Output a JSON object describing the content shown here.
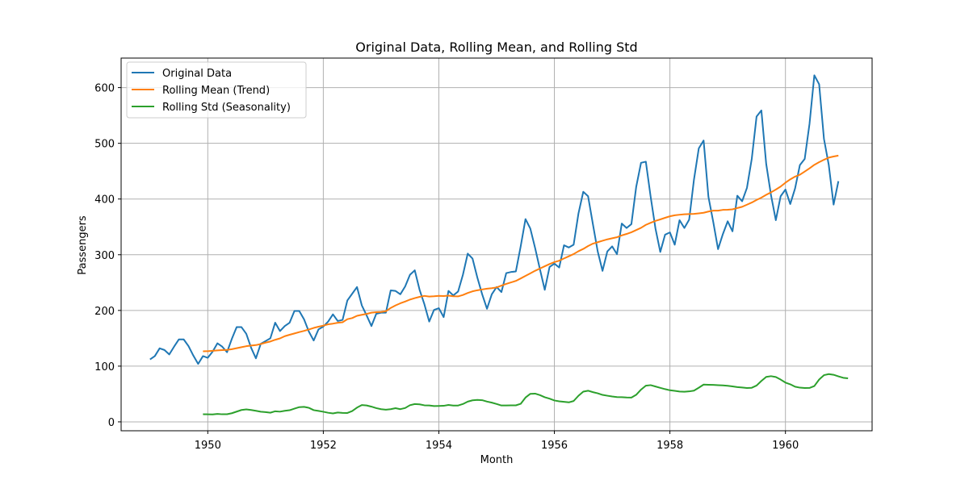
{
  "chart_data": {
    "type": "line",
    "title": "Original Data, Rolling Mean, and Rolling Std",
    "xlabel": "Month",
    "ylabel": "Passengers",
    "xlim": [
      1948.5,
      1961.5
    ],
    "ylim": [
      -16,
      653
    ],
    "xticks": [
      1950,
      1952,
      1954,
      1956,
      1958,
      1960
    ],
    "yticks": [
      0,
      100,
      200,
      300,
      400,
      500,
      600
    ],
    "grid": true,
    "legend_position": "top-left",
    "x_start": 1949,
    "x_step_months": 1,
    "series": [
      {
        "name": "Original Data",
        "color": "#1f77b4",
        "values": [
          112,
          118,
          132,
          129,
          121,
          135,
          148,
          148,
          136,
          119,
          104,
          118,
          115,
          126,
          141,
          135,
          125,
          149,
          170,
          170,
          158,
          133,
          114,
          140,
          145,
          150,
          178,
          163,
          172,
          178,
          199,
          199,
          184,
          162,
          146,
          166,
          171,
          180,
          193,
          181,
          183,
          218,
          230,
          242,
          209,
          191,
          172,
          194,
          196,
          196,
          236,
          235,
          229,
          243,
          264,
          272,
          237,
          211,
          180,
          201,
          204,
          188,
          235,
          227,
          234,
          264,
          302,
          293,
          259,
          229,
          203,
          229,
          242,
          233,
          267,
          269,
          270,
          315,
          364,
          347,
          312,
          274,
          237,
          278,
          284,
          277,
          317,
          313,
          318,
          374,
          413,
          405,
          355,
          306,
          271,
          306,
          315,
          301,
          356,
          348,
          355,
          422,
          465,
          467,
          404,
          347,
          305,
          336,
          340,
          318,
          362,
          348,
          363,
          435,
          491,
          505,
          404,
          359,
          310,
          337,
          360,
          342,
          406,
          396,
          420,
          472,
          548,
          559,
          463,
          407,
          362,
          405,
          417,
          391,
          419,
          461,
          472,
          535,
          622,
          606,
          508,
          461,
          390,
          432
        ]
      },
      {
        "name": "Rolling Mean (Trend)",
        "color": "#ff7f0e",
        "values": [
          null,
          null,
          null,
          null,
          null,
          null,
          null,
          null,
          null,
          null,
          null,
          126.7,
          126.9,
          127.6,
          128.3,
          128.8,
          129.2,
          130.4,
          132.2,
          134.0,
          135.8,
          137.0,
          137.8,
          139.7,
          142.2,
          144.2,
          147.3,
          149.8,
          153.8,
          156.3,
          158.7,
          161.1,
          163.3,
          165.8,
          168.6,
          170.8,
          172.7,
          175.1,
          176.3,
          177.8,
          178.8,
          184.3,
          186.3,
          190.3,
          192.2,
          193.8,
          196.0,
          196.8,
          197.2,
          198.6,
          204.5,
          209.0,
          212.8,
          215.9,
          219.5,
          222.1,
          224.4,
          226.1,
          224.9,
          225.4,
          226.2,
          225.9,
          226.5,
          225.5,
          225.2,
          227.7,
          231.3,
          234.3,
          236.2,
          237.7,
          239.1,
          240.0,
          241.3,
          244.5,
          247.6,
          250.3,
          253.0,
          257.4,
          262.1,
          266.6,
          271.2,
          275.2,
          279.3,
          283.3,
          286.7,
          289.3,
          293.3,
          297.2,
          301.2,
          306.3,
          310.4,
          315.6,
          319.9,
          322.5,
          325.1,
          327.6,
          329.5,
          331.4,
          334.7,
          337.3,
          340.3,
          344.3,
          348.3,
          353.6,
          357.3,
          360.8,
          363.4,
          366.3,
          369.0,
          370.8,
          371.8,
          372.6,
          372.9,
          373.3,
          374.3,
          375.3,
          377.5,
          379.1,
          379.2,
          380.5,
          380.7,
          381.5,
          383.8,
          386.0,
          389.8,
          393.7,
          398.3,
          402.5,
          407.5,
          412.0,
          417.0,
          422.4,
          429.3,
          435.3,
          440.3,
          443.7,
          449.3,
          455.1,
          461.4,
          466.2,
          470.5,
          474.3,
          476.3,
          478.0
        ]
      },
      {
        "name": "Rolling Std (Seasonality)",
        "color": "#2ca02c",
        "values": [
          null,
          null,
          null,
          null,
          null,
          null,
          null,
          null,
          null,
          null,
          null,
          13.7,
          13.5,
          13.3,
          14.2,
          13.6,
          13.7,
          15.5,
          18.4,
          21.3,
          22.3,
          21.3,
          19.9,
          18.2,
          17.5,
          16.4,
          19.0,
          18.3,
          19.8,
          20.9,
          23.7,
          26.4,
          26.9,
          25.2,
          21.0,
          19.6,
          18.1,
          16.3,
          15.1,
          16.8,
          16.0,
          15.9,
          19.4,
          25.6,
          30.1,
          29.4,
          27.3,
          24.6,
          22.7,
          21.9,
          22.8,
          24.5,
          22.8,
          24.8,
          29.9,
          32.0,
          31.4,
          29.7,
          29.4,
          28.3,
          28.5,
          28.8,
          30.3,
          29.2,
          29.3,
          32.0,
          36.3,
          38.7,
          39.4,
          38.9,
          36.4,
          34.5,
          32.1,
          29.4,
          29.4,
          29.6,
          29.6,
          32.4,
          43.6,
          50.3,
          50.7,
          48.0,
          44.2,
          41.6,
          38.4,
          36.9,
          35.9,
          35.0,
          37.4,
          46.8,
          54.2,
          55.9,
          53.3,
          51.2,
          48.4,
          46.9,
          45.5,
          44.5,
          44.2,
          43.7,
          43.6,
          48.6,
          57.9,
          64.9,
          65.9,
          63.5,
          61.0,
          58.7,
          56.7,
          55.6,
          54.4,
          54.1,
          54.7,
          56.1,
          61.3,
          66.9,
          66.6,
          66.4,
          65.9,
          65.4,
          64.8,
          63.6,
          62.4,
          61.7,
          60.7,
          61.2,
          65.2,
          73.4,
          80.6,
          82.0,
          80.5,
          75.9,
          70.5,
          67.4,
          63.1,
          61.4,
          60.8,
          60.9,
          64.3,
          76.0,
          83.8,
          85.7,
          84.5,
          81.7,
          79.1,
          78.1
        ]
      }
    ]
  }
}
